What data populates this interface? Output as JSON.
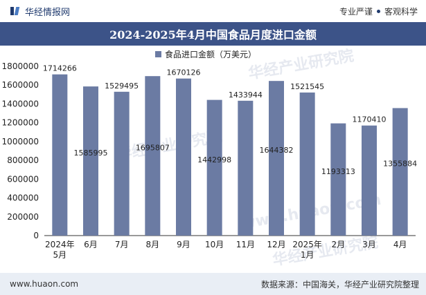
{
  "header": {
    "brand": "华经情报网",
    "tag1": "专业严谨",
    "tag2": "客观科学",
    "logo_icon": "huajing-logo-icon"
  },
  "title": "2024-2025年4月中国食品月度进口金额",
  "footer": {
    "url": "www.huaon.com",
    "source": "数据来源：中国海关，华经产业研究院整理"
  },
  "watermarks": [
    "华经产业研究院",
    "华经产业研究院",
    "华经产业研究院",
    "www.huaon.com"
  ],
  "chart_data": {
    "type": "bar",
    "categories": [
      [
        "2024年",
        "5月"
      ],
      [
        "6月"
      ],
      [
        "7月"
      ],
      [
        "8月"
      ],
      [
        "9月"
      ],
      [
        "10月"
      ],
      [
        "11月"
      ],
      [
        "12月"
      ],
      [
        "2025年",
        "1月"
      ],
      [
        "2月"
      ],
      [
        "3月"
      ],
      [
        "4月"
      ]
    ],
    "series": [
      {
        "name": "食品进口金额（万美元）",
        "values": [
          1714266,
          1585995,
          1529495,
          1695807,
          1670126,
          1442998,
          1433944,
          1644382,
          1521545,
          1193313,
          1170410,
          1355884
        ],
        "color": "#6b7ba3"
      }
    ],
    "value_label_position": [
      "top",
      "inside",
      "top",
      "inside",
      "top",
      "inside",
      "top",
      "inside",
      "top",
      "inside",
      "top",
      "inside"
    ],
    "yticks": [
      "0",
      "200000",
      "400000",
      "600000",
      "800000",
      "1000000",
      "1200000",
      "1400000",
      "1600000",
      "1800000"
    ],
    "ylim": [
      0,
      1800000
    ],
    "legend": "top-center",
    "grid": false
  }
}
